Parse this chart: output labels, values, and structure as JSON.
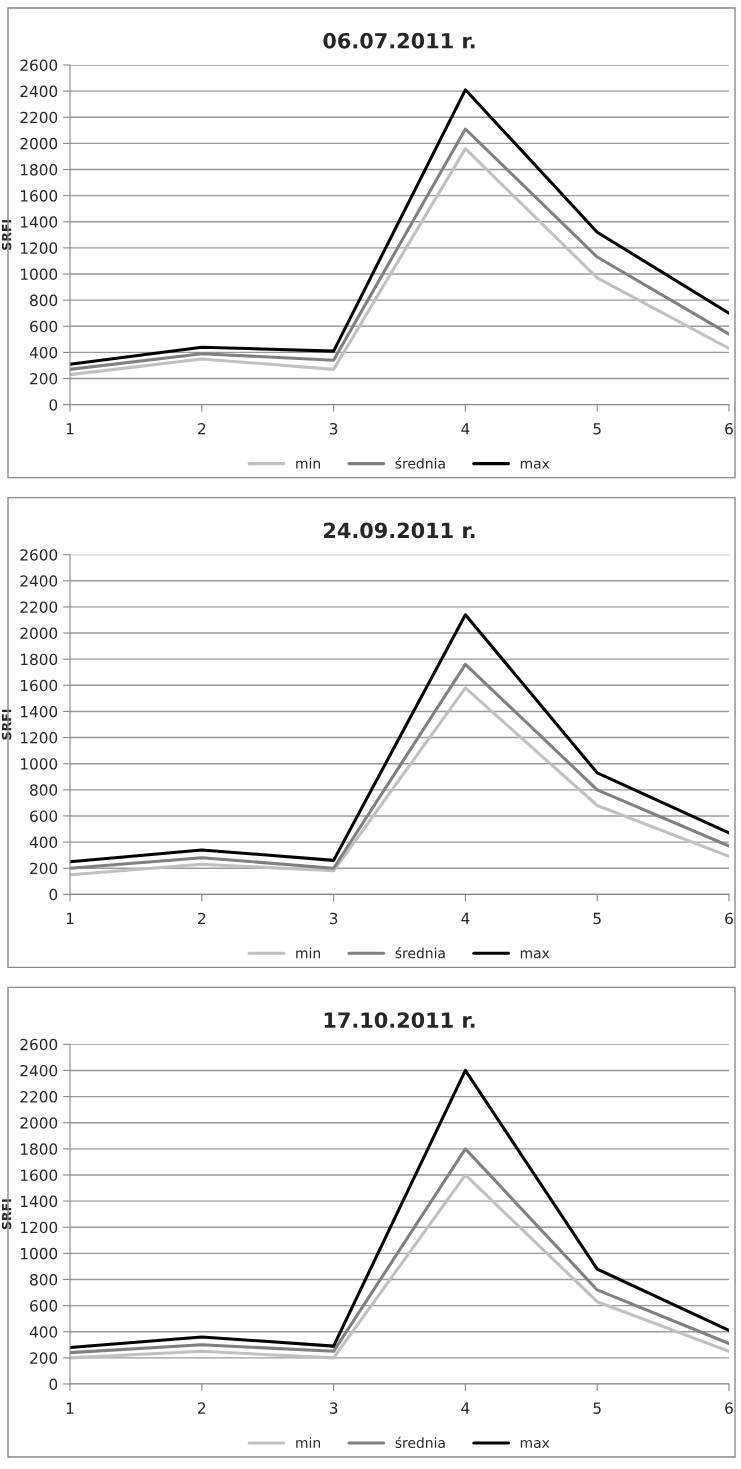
{
  "chart_data": [
    {
      "type": "line",
      "title": "06.07.2011 r.",
      "ylabel": "SRFI",
      "x": [
        1,
        2,
        3,
        4,
        5,
        6
      ],
      "xlim": [
        1,
        6
      ],
      "xticks": [
        1,
        2,
        3,
        4,
        5,
        6
      ],
      "ylim": [
        0,
        2600
      ],
      "yticks": [
        0,
        200,
        400,
        600,
        800,
        1000,
        1200,
        1400,
        1600,
        1800,
        2000,
        2200,
        2400,
        2600
      ],
      "grid": "y",
      "legend": "bottom",
      "marker": "none",
      "line_style": "solid",
      "series": [
        {
          "name": "min",
          "color": "#c0c0c0",
          "values": [
            230,
            350,
            270,
            1960,
            970,
            430
          ]
        },
        {
          "name": "średnia",
          "color": "#808080",
          "values": [
            270,
            390,
            340,
            2110,
            1130,
            540
          ]
        },
        {
          "name": "max",
          "color": "#000000",
          "values": [
            310,
            440,
            410,
            2410,
            1320,
            700
          ]
        }
      ]
    },
    {
      "type": "line",
      "title": "24.09.2011 r.",
      "ylabel": "SRFI",
      "x": [
        1,
        2,
        3,
        4,
        5,
        6
      ],
      "xlim": [
        1,
        6
      ],
      "xticks": [
        1,
        2,
        3,
        4,
        5,
        6
      ],
      "ylim": [
        0,
        2600
      ],
      "yticks": [
        0,
        200,
        400,
        600,
        800,
        1000,
        1200,
        1400,
        1600,
        1800,
        2000,
        2200,
        2400,
        2600
      ],
      "grid": "y",
      "legend": "bottom",
      "marker": "none",
      "line_style": "solid",
      "series": [
        {
          "name": "min",
          "color": "#c0c0c0",
          "values": [
            150,
            230,
            180,
            1580,
            680,
            290
          ]
        },
        {
          "name": "średnia",
          "color": "#808080",
          "values": [
            200,
            280,
            200,
            1760,
            800,
            370
          ]
        },
        {
          "name": "max",
          "color": "#000000",
          "values": [
            250,
            340,
            260,
            2140,
            930,
            470
          ]
        }
      ]
    },
    {
      "type": "line",
      "title": "17.10.2011 r.",
      "ylabel": "SRFI",
      "x": [
        1,
        2,
        3,
        4,
        5,
        6
      ],
      "xlim": [
        1,
        6
      ],
      "xticks": [
        1,
        2,
        3,
        4,
        5,
        6
      ],
      "ylim": [
        0,
        2600
      ],
      "yticks": [
        0,
        200,
        400,
        600,
        800,
        1000,
        1200,
        1400,
        1600,
        1800,
        2000,
        2200,
        2400,
        2600
      ],
      "grid": "y",
      "legend": "bottom",
      "marker": "none",
      "line_style": "solid",
      "series": [
        {
          "name": "min",
          "color": "#c0c0c0",
          "values": [
            200,
            250,
            200,
            1600,
            630,
            250
          ]
        },
        {
          "name": "średnia",
          "color": "#808080",
          "values": [
            240,
            300,
            250,
            1800,
            720,
            310
          ]
        },
        {
          "name": "max",
          "color": "#000000",
          "values": [
            280,
            360,
            290,
            2400,
            880,
            410
          ]
        }
      ]
    }
  ]
}
